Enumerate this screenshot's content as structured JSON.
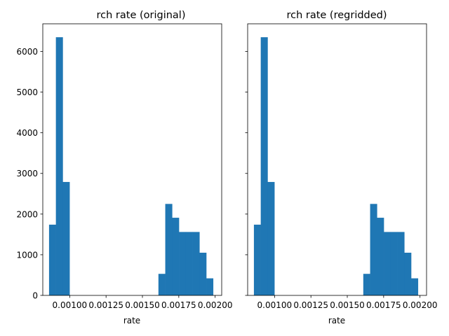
{
  "bar_color": "#1f77b4",
  "chart_data": [
    {
      "type": "bar",
      "title": "rch rate (original)",
      "xlabel": "rate",
      "ylabel": "",
      "x_ticks": [
        0.001,
        0.00125,
        0.0015,
        0.00175,
        0.002
      ],
      "x_tick_labels": [
        "0.00100",
        "0.00125",
        "0.00150",
        "0.00175",
        "0.00200"
      ],
      "y_ticks": [
        0,
        1000,
        2000,
        3000,
        4000,
        5000,
        6000
      ],
      "y_tick_labels": [
        "0",
        "1000",
        "2000",
        "3000",
        "4000",
        "5000",
        "6000"
      ],
      "xlim": [
        0.000815,
        0.002045
      ],
      "ylim": [
        0,
        6680
      ],
      "bin_edges": [
        0.000858,
        0.000905,
        0.000952,
        0.000999,
        0.001046,
        0.001093,
        0.00114,
        0.001187,
        0.001234,
        0.001281,
        0.001328,
        0.001375,
        0.001422,
        0.001469,
        0.001516,
        0.001563,
        0.00161,
        0.001657,
        0.001704,
        0.001751,
        0.001798,
        0.001845,
        0.001892,
        0.001939,
        0.001986,
        0.002033
      ],
      "counts": [
        1740,
        6350,
        2790,
        0,
        0,
        0,
        0,
        0,
        0,
        0,
        0,
        0,
        0,
        0,
        0,
        0,
        530,
        2250,
        1910,
        1560,
        1560,
        1560,
        1050,
        420,
        0
      ]
    },
    {
      "type": "bar",
      "title": "rch rate (regridded)",
      "xlabel": "rate",
      "ylabel": "",
      "x_ticks": [
        0.001,
        0.00125,
        0.0015,
        0.00175,
        0.002
      ],
      "x_tick_labels": [
        "0.00100",
        "0.00125",
        "0.00150",
        "0.00175",
        "0.00200"
      ],
      "y_ticks": [
        0,
        1000,
        2000,
        3000,
        4000,
        5000,
        6000
      ],
      "y_tick_labels": [],
      "xlim": [
        0.000815,
        0.002045
      ],
      "ylim": [
        0,
        6680
      ],
      "bin_edges": [
        0.000858,
        0.000905,
        0.000952,
        0.000999,
        0.001046,
        0.001093,
        0.00114,
        0.001187,
        0.001234,
        0.001281,
        0.001328,
        0.001375,
        0.001422,
        0.001469,
        0.001516,
        0.001563,
        0.00161,
        0.001657,
        0.001704,
        0.001751,
        0.001798,
        0.001845,
        0.001892,
        0.001939,
        0.001986,
        0.002033
      ],
      "counts": [
        1740,
        6350,
        2790,
        0,
        0,
        0,
        0,
        0,
        0,
        0,
        0,
        0,
        0,
        0,
        0,
        0,
        530,
        2250,
        1910,
        1560,
        1560,
        1560,
        1050,
        420,
        0
      ]
    }
  ]
}
